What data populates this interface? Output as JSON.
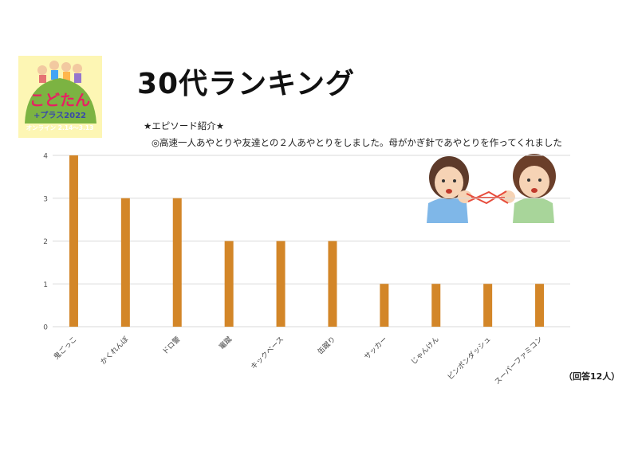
{
  "header": {
    "title": "30代ランキング",
    "episode_heading": "★エピソード紹介★",
    "episode_text": "◎高速一人あやとりや友達との２人あやとりをしました。母がかぎ針であやとりを作ってくれました"
  },
  "logo": {
    "line1": "こどたん",
    "line2": "+プラス2022",
    "line3": "オンライン 2.14～3.13"
  },
  "footnote": "（回答12人）",
  "colors": {
    "bar": "#d38628",
    "logo_bg": "#fdf6b4",
    "logo_hill": "#7cb342",
    "grid": "#d9d9d9"
  },
  "chart_data": {
    "type": "bar",
    "categories": [
      "鬼ごっこ",
      "かくれんぼ",
      "ドロ警",
      "竃蹴",
      "キックベース",
      "缶蹴り",
      "サッカー",
      "じゃんけん",
      "ピンポンダッシュ",
      "スーパーファミコン"
    ],
    "values": [
      4,
      3,
      3,
      2,
      2,
      2,
      1,
      1,
      1,
      1
    ],
    "yticks": [
      0,
      1,
      2,
      3,
      4
    ],
    "ylim": [
      0,
      4
    ],
    "grid": true,
    "title": "",
    "xlabel": "",
    "ylabel": ""
  }
}
